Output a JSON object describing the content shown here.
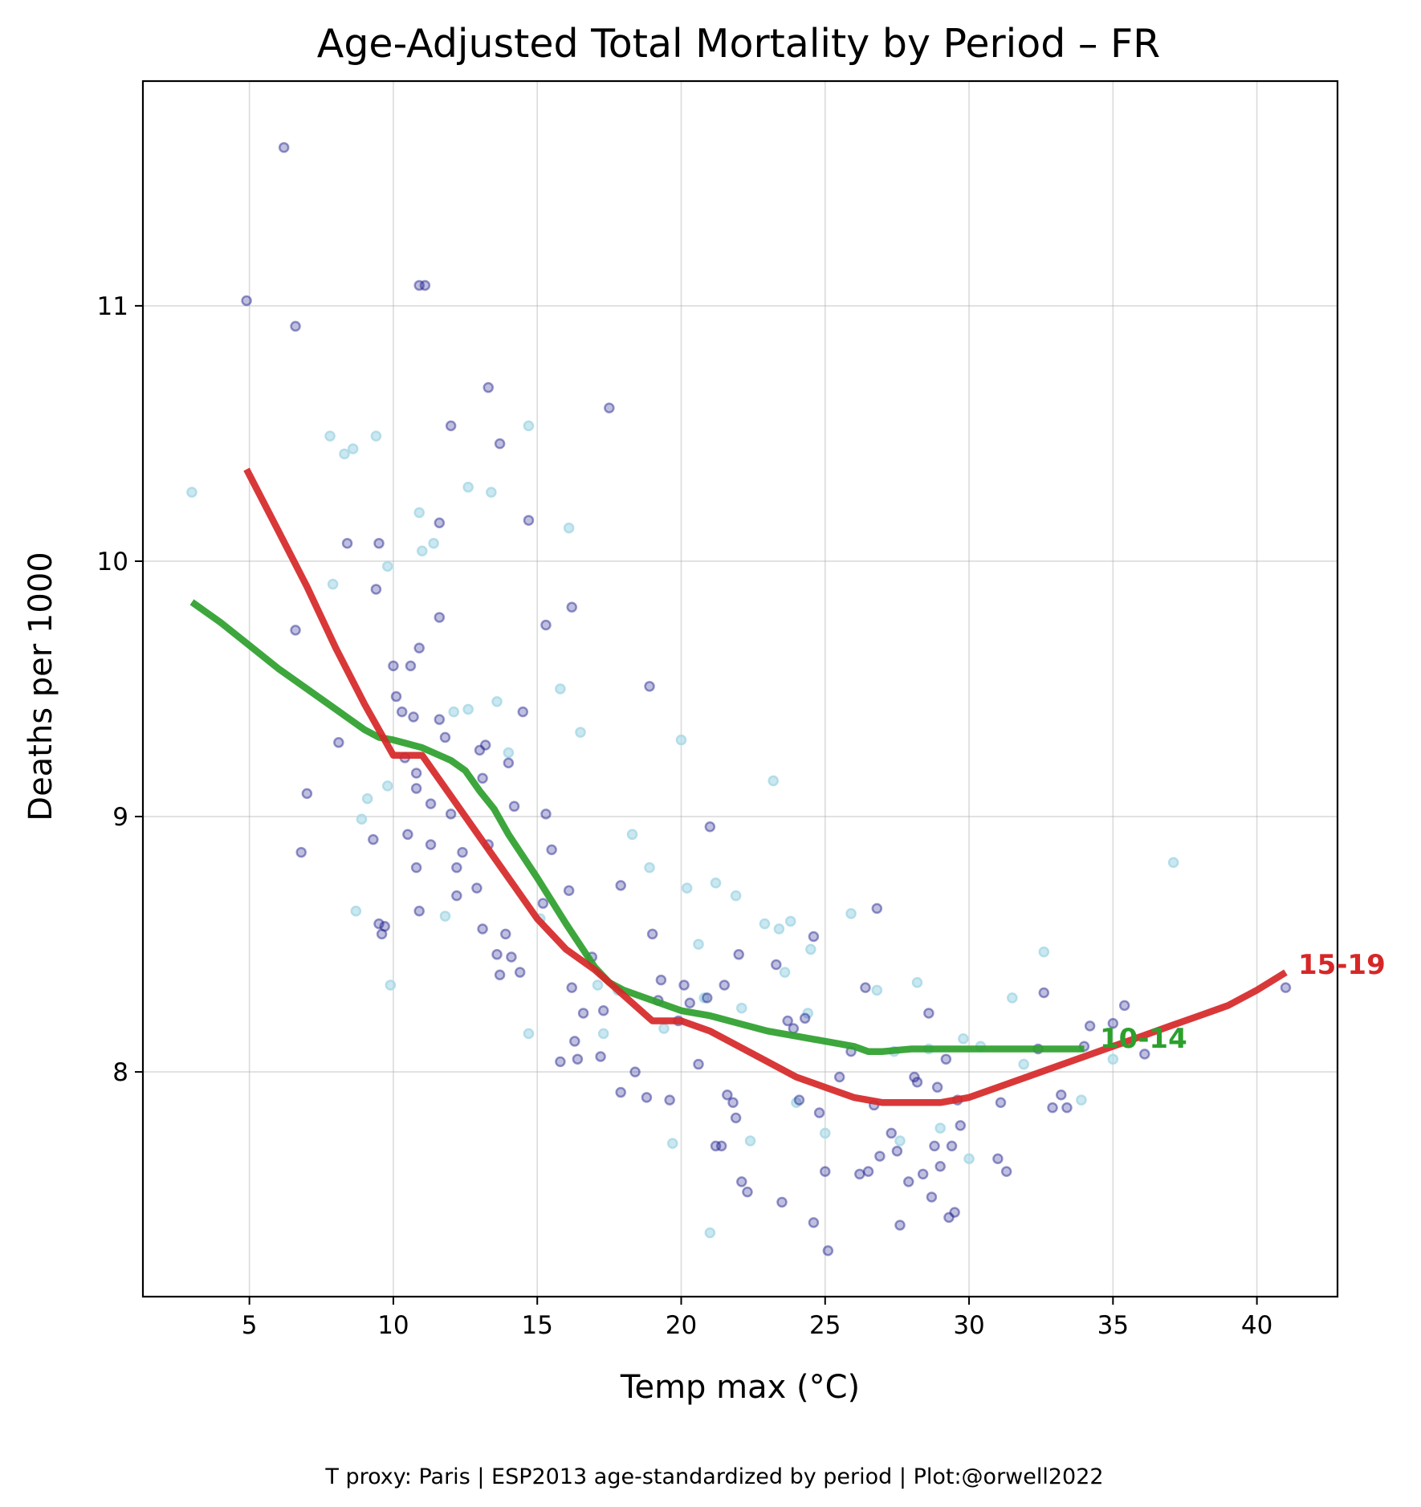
{
  "chart_data": {
    "type": "scatter",
    "title": "Age-Adjusted Total Mortality by Period – FR",
    "xlabel": "Temp max (°C)",
    "ylabel": "Deaths per 1000",
    "caption": "T proxy: Paris | ESP2013 age-standardized by period | Plot:@orwell2022",
    "xlim": [
      1.3,
      42.8
    ],
    "ylim": [
      7.12,
      11.88
    ],
    "xticks": [
      5,
      10,
      15,
      20,
      25,
      30,
      35,
      40
    ],
    "yticks": [
      8,
      9,
      10,
      11
    ],
    "grid": true,
    "colors": {
      "points_dark": "#1a1a8c",
      "points_light": "#a9d8e6",
      "series_15_19": "#d62728",
      "series_10_14": "#2ca02c"
    },
    "points_dark": [
      [
        4.9,
        11.02
      ],
      [
        6.2,
        11.62
      ],
      [
        6.6,
        10.92
      ],
      [
        6.6,
        9.73
      ],
      [
        7.0,
        9.09
      ],
      [
        6.8,
        8.86
      ],
      [
        8.1,
        9.29
      ],
      [
        8.4,
        10.07
      ],
      [
        9.4,
        9.89
      ],
      [
        9.5,
        10.07
      ],
      [
        9.3,
        8.91
      ],
      [
        9.5,
        8.58
      ],
      [
        9.6,
        8.54
      ],
      [
        9.7,
        8.57
      ],
      [
        10.0,
        9.59
      ],
      [
        10.1,
        9.47
      ],
      [
        10.3,
        9.41
      ],
      [
        10.4,
        9.23
      ],
      [
        10.5,
        8.93
      ],
      [
        10.6,
        9.59
      ],
      [
        10.7,
        9.39
      ],
      [
        10.8,
        9.11
      ],
      [
        10.8,
        9.17
      ],
      [
        10.8,
        8.8
      ],
      [
        10.9,
        9.66
      ],
      [
        10.9,
        8.63
      ],
      [
        10.9,
        11.08
      ],
      [
        11.1,
        11.08
      ],
      [
        11.3,
        9.05
      ],
      [
        11.3,
        8.89
      ],
      [
        11.6,
        9.38
      ],
      [
        11.6,
        9.78
      ],
      [
        11.6,
        10.15
      ],
      [
        11.8,
        9.31
      ],
      [
        12.0,
        9.01
      ],
      [
        12.0,
        10.53
      ],
      [
        12.2,
        8.8
      ],
      [
        12.2,
        8.69
      ],
      [
        12.4,
        8.86
      ],
      [
        12.9,
        8.72
      ],
      [
        13.0,
        9.26
      ],
      [
        13.1,
        9.15
      ],
      [
        13.1,
        8.56
      ],
      [
        13.2,
        9.28
      ],
      [
        13.3,
        8.89
      ],
      [
        13.3,
        10.68
      ],
      [
        13.6,
        8.46
      ],
      [
        13.7,
        8.38
      ],
      [
        13.7,
        10.46
      ],
      [
        13.9,
        8.54
      ],
      [
        14.0,
        9.21
      ],
      [
        14.1,
        8.45
      ],
      [
        14.2,
        9.04
      ],
      [
        14.4,
        8.39
      ],
      [
        14.5,
        9.41
      ],
      [
        14.7,
        10.16
      ],
      [
        15.2,
        8.66
      ],
      [
        15.3,
        9.01
      ],
      [
        15.3,
        9.75
      ],
      [
        15.5,
        8.87
      ],
      [
        15.8,
        8.04
      ],
      [
        16.1,
        8.71
      ],
      [
        16.2,
        8.33
      ],
      [
        16.2,
        9.82
      ],
      [
        16.3,
        8.12
      ],
      [
        16.4,
        8.05
      ],
      [
        16.6,
        8.23
      ],
      [
        16.9,
        8.45
      ],
      [
        17.2,
        8.06
      ],
      [
        17.3,
        8.24
      ],
      [
        17.5,
        10.6
      ],
      [
        17.9,
        8.73
      ],
      [
        17.9,
        7.92
      ],
      [
        18.4,
        8.0
      ],
      [
        18.8,
        7.9
      ],
      [
        18.9,
        9.51
      ],
      [
        19.0,
        8.54
      ],
      [
        19.2,
        8.28
      ],
      [
        19.3,
        8.36
      ],
      [
        19.6,
        7.89
      ],
      [
        19.9,
        8.2
      ],
      [
        20.1,
        8.34
      ],
      [
        20.3,
        8.27
      ],
      [
        20.6,
        8.03
      ],
      [
        20.9,
        8.29
      ],
      [
        21.0,
        8.96
      ],
      [
        21.2,
        7.71
      ],
      [
        21.4,
        7.71
      ],
      [
        21.5,
        8.34
      ],
      [
        21.6,
        7.91
      ],
      [
        21.8,
        7.88
      ],
      [
        21.9,
        7.82
      ],
      [
        22.0,
        8.46
      ],
      [
        22.1,
        7.57
      ],
      [
        22.3,
        7.53
      ],
      [
        23.3,
        8.42
      ],
      [
        23.5,
        7.49
      ],
      [
        23.7,
        8.2
      ],
      [
        23.9,
        8.17
      ],
      [
        24.1,
        7.89
      ],
      [
        24.3,
        8.21
      ],
      [
        24.6,
        7.41
      ],
      [
        24.6,
        8.53
      ],
      [
        24.8,
        7.84
      ],
      [
        25.0,
        7.61
      ],
      [
        25.1,
        7.3
      ],
      [
        25.5,
        7.98
      ],
      [
        25.9,
        8.08
      ],
      [
        26.2,
        7.6
      ],
      [
        26.4,
        8.33
      ],
      [
        26.5,
        7.61
      ],
      [
        26.7,
        7.87
      ],
      [
        26.8,
        8.64
      ],
      [
        26.9,
        7.67
      ],
      [
        27.3,
        7.76
      ],
      [
        27.5,
        7.69
      ],
      [
        27.6,
        7.4
      ],
      [
        27.9,
        7.57
      ],
      [
        28.1,
        7.98
      ],
      [
        28.2,
        7.96
      ],
      [
        28.4,
        7.6
      ],
      [
        28.6,
        8.23
      ],
      [
        28.7,
        7.51
      ],
      [
        28.8,
        7.71
      ],
      [
        28.9,
        7.94
      ],
      [
        29.0,
        7.63
      ],
      [
        29.2,
        8.05
      ],
      [
        29.3,
        7.43
      ],
      [
        29.4,
        7.71
      ],
      [
        29.5,
        7.45
      ],
      [
        29.6,
        7.89
      ],
      [
        29.7,
        7.79
      ],
      [
        31.1,
        7.88
      ],
      [
        31.0,
        7.66
      ],
      [
        31.3,
        7.61
      ],
      [
        32.4,
        8.09
      ],
      [
        32.6,
        8.31
      ],
      [
        32.9,
        7.86
      ],
      [
        33.2,
        7.91
      ],
      [
        33.4,
        7.86
      ],
      [
        34.0,
        8.1
      ],
      [
        34.2,
        8.18
      ],
      [
        35.0,
        8.19
      ],
      [
        35.4,
        8.26
      ],
      [
        36.1,
        8.07
      ],
      [
        41.0,
        8.33
      ]
    ],
    "points_light": [
      [
        3.0,
        10.27
      ],
      [
        7.8,
        10.49
      ],
      [
        7.9,
        9.91
      ],
      [
        8.3,
        10.42
      ],
      [
        8.6,
        10.44
      ],
      [
        8.7,
        8.63
      ],
      [
        8.9,
        8.99
      ],
      [
        9.1,
        9.07
      ],
      [
        9.4,
        10.49
      ],
      [
        9.8,
        9.98
      ],
      [
        9.8,
        9.12
      ],
      [
        9.9,
        8.34
      ],
      [
        10.9,
        10.19
      ],
      [
        11.0,
        10.04
      ],
      [
        11.4,
        10.07
      ],
      [
        11.8,
        8.61
      ],
      [
        12.1,
        9.41
      ],
      [
        12.6,
        9.42
      ],
      [
        12.6,
        10.29
      ],
      [
        13.4,
        10.27
      ],
      [
        13.6,
        9.45
      ],
      [
        14.0,
        9.25
      ],
      [
        14.7,
        8.15
      ],
      [
        14.7,
        10.53
      ],
      [
        15.1,
        8.6
      ],
      [
        15.8,
        9.5
      ],
      [
        16.1,
        10.13
      ],
      [
        16.5,
        9.33
      ],
      [
        17.1,
        8.34
      ],
      [
        17.3,
        8.15
      ],
      [
        17.8,
        8.32
      ],
      [
        18.3,
        8.93
      ],
      [
        18.9,
        8.8
      ],
      [
        19.4,
        8.17
      ],
      [
        19.7,
        7.72
      ],
      [
        20.0,
        9.3
      ],
      [
        20.2,
        8.72
      ],
      [
        20.6,
        8.5
      ],
      [
        20.8,
        8.29
      ],
      [
        21.0,
        7.37
      ],
      [
        21.2,
        8.74
      ],
      [
        21.9,
        8.69
      ],
      [
        22.1,
        8.25
      ],
      [
        22.4,
        7.73
      ],
      [
        22.9,
        8.58
      ],
      [
        23.2,
        9.14
      ],
      [
        23.4,
        8.56
      ],
      [
        23.6,
        8.39
      ],
      [
        23.8,
        8.59
      ],
      [
        24.0,
        7.88
      ],
      [
        24.4,
        8.23
      ],
      [
        24.5,
        8.48
      ],
      [
        25.0,
        7.76
      ],
      [
        25.9,
        8.62
      ],
      [
        26.8,
        8.32
      ],
      [
        27.4,
        8.08
      ],
      [
        27.6,
        7.73
      ],
      [
        28.2,
        8.35
      ],
      [
        28.6,
        8.09
      ],
      [
        29.0,
        7.78
      ],
      [
        29.8,
        8.13
      ],
      [
        30.0,
        7.66
      ],
      [
        30.4,
        8.1
      ],
      [
        31.5,
        8.29
      ],
      [
        31.9,
        8.03
      ],
      [
        32.6,
        8.47
      ],
      [
        33.9,
        7.89
      ],
      [
        35.0,
        8.05
      ],
      [
        37.1,
        8.82
      ]
    ],
    "series": [
      {
        "name": "15-19",
        "color": "#d62728",
        "x": [
          4.9,
          6.0,
          7.0,
          8.0,
          9.0,
          10.0,
          11.0,
          12.0,
          13.0,
          14.0,
          15.0,
          16.0,
          17.0,
          18.0,
          19.0,
          20.0,
          21.0,
          22.0,
          23.0,
          24.0,
          25.0,
          26.0,
          27.0,
          28.0,
          29.0,
          30.0,
          31.0,
          32.0,
          33.0,
          34.0,
          35.0,
          36.0,
          37.0,
          38.0,
          39.0,
          40.0,
          41.0
        ],
        "y": [
          10.36,
          10.12,
          9.9,
          9.66,
          9.44,
          9.24,
          9.24,
          9.08,
          8.92,
          8.76,
          8.6,
          8.48,
          8.4,
          8.3,
          8.2,
          8.2,
          8.16,
          8.1,
          8.04,
          7.98,
          7.94,
          7.9,
          7.88,
          7.88,
          7.88,
          7.9,
          7.94,
          7.98,
          8.02,
          8.06,
          8.1,
          8.14,
          8.18,
          8.22,
          8.26,
          8.32,
          8.39
        ]
      },
      {
        "name": "10-14",
        "color": "#2ca02c",
        "x": [
          3.0,
          4.0,
          5.0,
          6.0,
          7.0,
          8.0,
          9.0,
          9.5,
          10.0,
          11.0,
          12.0,
          12.5,
          13.0,
          13.5,
          14.0,
          15.0,
          16.0,
          17.0,
          17.5,
          18.0,
          19.0,
          20.0,
          21.0,
          22.0,
          23.0,
          24.0,
          25.0,
          26.0,
          26.5,
          27.0,
          28.0,
          29.0,
          30.0,
          31.0,
          32.0,
          33.0,
          34.0
        ],
        "y": [
          9.84,
          9.76,
          9.67,
          9.58,
          9.5,
          9.42,
          9.34,
          9.31,
          9.3,
          9.27,
          9.22,
          9.18,
          9.1,
          9.03,
          8.93,
          8.76,
          8.58,
          8.41,
          8.35,
          8.32,
          8.28,
          8.24,
          8.22,
          8.19,
          8.16,
          8.14,
          8.12,
          8.1,
          8.08,
          8.08,
          8.09,
          8.09,
          8.09,
          8.09,
          8.09,
          8.09,
          8.09
        ]
      }
    ],
    "series_labels": {
      "s15_19": "15-19",
      "s10_14": "10-14"
    }
  }
}
